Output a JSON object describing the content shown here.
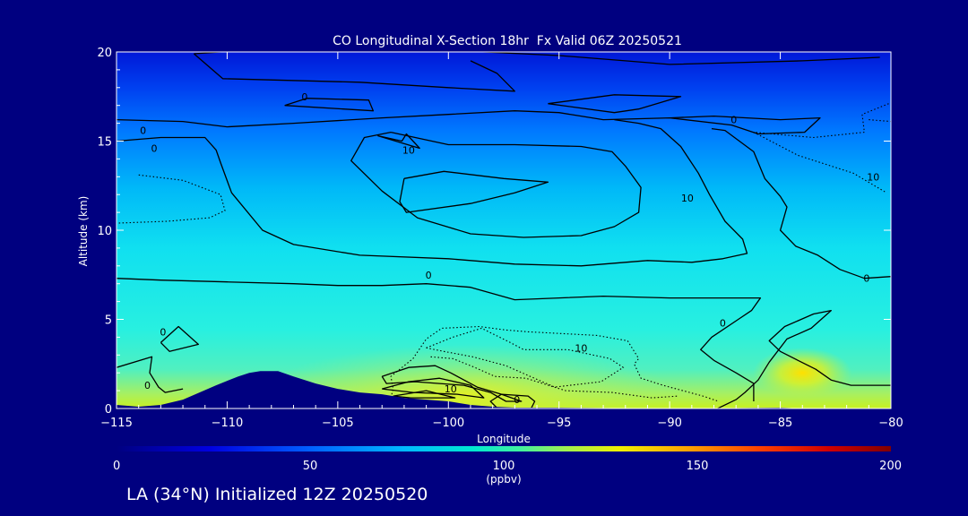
{
  "chart_data": {
    "type": "heatmap",
    "title": "CO Longitudinal X-Section 18hr  Fx Valid 06Z 20250521",
    "xlabel": "Longitude",
    "ylabel": "Altitude (km)",
    "xlim": [
      -115,
      -80
    ],
    "ylim": [
      0,
      20
    ],
    "x_ticks": [
      -115,
      -110,
      -105,
      -100,
      -95,
      -90,
      -85,
      -80
    ],
    "y_ticks": [
      0,
      5,
      10,
      15,
      20
    ],
    "x_tick_labels": [
      "−115",
      "−110",
      "−105",
      "−100",
      "−95",
      "−90",
      "−85",
      "−80"
    ],
    "y_tick_labels": [
      "0",
      "5",
      "10",
      "15",
      "20"
    ],
    "colorbar": {
      "min": 0,
      "max": 200,
      "units": "(ppbv)",
      "ticks": [
        0,
        50,
        100,
        150,
        200
      ],
      "tick_labels": [
        "0",
        "50",
        "100",
        "150",
        "200"
      ],
      "colors": [
        "#000080",
        "#0000e0",
        "#0060ff",
        "#00b8ff",
        "#00e8d0",
        "#40f0a0",
        "#a0f050",
        "#f0f000",
        "#ffa000",
        "#ff4000",
        "#d00000",
        "#800000"
      ]
    },
    "field_ppbv_by_altitude": {
      "altitudes_km": [
        0,
        2,
        5,
        10,
        15,
        20
      ],
      "values": [
        100,
        95,
        85,
        80,
        65,
        38
      ]
    },
    "enhancement": {
      "lon": -84,
      "alt_km": 2,
      "value": 118
    },
    "contour_levels_shown": [
      -10,
      0,
      10
    ],
    "contour_labels": [
      {
        "text": "0",
        "lon": -113.8,
        "alt": 15.6
      },
      {
        "text": "0",
        "lon": -113.3,
        "alt": 14.6
      },
      {
        "text": "0",
        "lon": -106.5,
        "alt": 17.5
      },
      {
        "text": "10",
        "lon": -101.8,
        "alt": 14.5
      },
      {
        "text": "10",
        "lon": -89.2,
        "alt": 11.8
      },
      {
        "text": "0",
        "lon": -87.1,
        "alt": 16.2
      },
      {
        "text": "10",
        "lon": -80.8,
        "alt": 13.0
      },
      {
        "text": "0",
        "lon": -100.9,
        "alt": 7.5
      },
      {
        "text": "0",
        "lon": -81.1,
        "alt": 7.3
      },
      {
        "text": "0",
        "lon": -87.6,
        "alt": 4.8
      },
      {
        "text": "10",
        "lon": -94.0,
        "alt": 3.4
      },
      {
        "text": "0",
        "lon": -112.9,
        "alt": 4.3
      },
      {
        "text": "0",
        "lon": -113.6,
        "alt": 1.3
      },
      {
        "text": "10",
        "lon": -99.9,
        "alt": 1.1
      },
      {
        "text": "0",
        "lon": -96.9,
        "alt": 0.5
      }
    ],
    "solid_contours": [
      [
        [
          -111.5,
          19.9
        ],
        [
          -108,
          20.2
        ],
        [
          -105,
          20.2
        ],
        [
          -100,
          20.1
        ],
        [
          -95,
          19.8
        ],
        [
          -92,
          19.5
        ],
        [
          -90,
          19.3
        ],
        [
          -84,
          19.5
        ],
        [
          -80.5,
          19.7
        ]
      ],
      [
        [
          -111.5,
          19.9
        ],
        [
          -110.2,
          18.5
        ],
        [
          -104,
          18.3
        ],
        [
          -100,
          18.0
        ],
        [
          -97,
          17.8
        ],
        [
          -97.8,
          18.8
        ],
        [
          -99,
          19.5
        ]
      ],
      [
        [
          -107.4,
          17.0
        ],
        [
          -103.4,
          16.7
        ],
        [
          -103.6,
          17.3
        ],
        [
          -106.4,
          17.4
        ],
        [
          -107.4,
          17.0
        ]
      ],
      [
        [
          -95.5,
          17.1
        ],
        [
          -92.5,
          17.6
        ],
        [
          -89.5,
          17.5
        ],
        [
          -91.4,
          16.8
        ],
        [
          -92.5,
          16.6
        ],
        [
          -95.5,
          17.1
        ]
      ],
      [
        [
          -115,
          16.2
        ],
        [
          -112,
          16.1
        ],
        [
          -110,
          15.8
        ],
        [
          -107,
          16.0
        ],
        [
          -103,
          16.3
        ],
        [
          -100,
          16.5
        ],
        [
          -97,
          16.7
        ],
        [
          -95,
          16.6
        ],
        [
          -93,
          16.2
        ],
        [
          -90,
          16.3
        ],
        [
          -88,
          16.4
        ],
        [
          -85,
          16.2
        ],
        [
          -83.2,
          16.3
        ],
        [
          -83.9,
          15.5
        ],
        [
          -86,
          15.4
        ],
        [
          -87.2,
          15.9
        ],
        [
          -90,
          16.3
        ]
      ],
      [
        [
          -115,
          15.0
        ],
        [
          -113,
          15.2
        ],
        [
          -111,
          15.2
        ],
        [
          -110.5,
          14.5
        ],
        [
          -110.3,
          13.8
        ],
        [
          -109.8,
          12.1
        ],
        [
          -108.4,
          10.0
        ],
        [
          -107.0,
          9.2
        ],
        [
          -104,
          8.6
        ],
        [
          -100,
          8.4
        ],
        [
          -97,
          8.1
        ],
        [
          -94,
          8.0
        ],
        [
          -91,
          8.3
        ],
        [
          -89,
          8.2
        ],
        [
          -87.6,
          8.4
        ],
        [
          -86.5,
          8.7
        ],
        [
          -86.7,
          9.5
        ],
        [
          -87.5,
          10.5
        ],
        [
          -88.2,
          12.0
        ],
        [
          -88.7,
          13.2
        ],
        [
          -89.5,
          14.7
        ],
        [
          -90.4,
          15.7
        ],
        [
          -91.4,
          16.0
        ],
        [
          -92.5,
          16.2
        ]
      ],
      [
        [
          -102.6,
          15.5
        ],
        [
          -103.8,
          15.2
        ],
        [
          -104.4,
          13.9
        ],
        [
          -103.0,
          12.2
        ],
        [
          -101.4,
          10.7
        ],
        [
          -99.0,
          9.8
        ],
        [
          -96.6,
          9.6
        ],
        [
          -94,
          9.7
        ],
        [
          -92.5,
          10.2
        ],
        [
          -91.4,
          11.0
        ],
        [
          -91.3,
          12.4
        ],
        [
          -92.0,
          13.6
        ],
        [
          -92.6,
          14.4
        ],
        [
          -94.0,
          14.7
        ],
        [
          -97,
          14.8
        ],
        [
          -100,
          14.8
        ],
        [
          -102.6,
          15.5
        ]
      ],
      [
        [
          -102.0,
          12.9
        ],
        [
          -100.2,
          13.3
        ],
        [
          -97.5,
          12.9
        ],
        [
          -95.5,
          12.7
        ],
        [
          -97.0,
          12.1
        ],
        [
          -99.0,
          11.5
        ],
        [
          -101.9,
          11.0
        ],
        [
          -102.2,
          11.6
        ],
        [
          -102.0,
          12.9
        ]
      ],
      [
        [
          -103.2,
          15.3
        ],
        [
          -102.1,
          15.0
        ],
        [
          -101.9,
          15.4
        ],
        [
          -101.3,
          14.6
        ],
        [
          -103.2,
          15.3
        ]
      ],
      [
        [
          -115,
          2.3
        ],
        [
          -113.4,
          2.9
        ],
        [
          -113.5,
          2.0
        ],
        [
          -113.1,
          1.2
        ],
        [
          -112.8,
          0.9
        ],
        [
          -112,
          1.1
        ]
      ],
      [
        [
          -113.0,
          3.7
        ],
        [
          -112.2,
          4.6
        ],
        [
          -111.3,
          3.6
        ],
        [
          -112.6,
          3.2
        ],
        [
          -113.0,
          3.7
        ]
      ],
      [
        [
          -80,
          7.4
        ],
        [
          -81.2,
          7.3
        ],
        [
          -82.3,
          7.8
        ],
        [
          -83.3,
          8.6
        ],
        [
          -84.3,
          9.1
        ],
        [
          -85.0,
          10.0
        ],
        [
          -84.7,
          11.3
        ],
        [
          -85.0,
          11.9
        ],
        [
          -85.7,
          12.9
        ],
        [
          -86.2,
          14.4
        ],
        [
          -87.5,
          15.6
        ],
        [
          -88.1,
          15.7
        ]
      ],
      [
        [
          -80,
          1.3
        ],
        [
          -81.8,
          1.3
        ],
        [
          -82.7,
          1.6
        ],
        [
          -83.4,
          2.2
        ],
        [
          -84.2,
          2.7
        ],
        [
          -85,
          3.2
        ],
        [
          -85.5,
          3.8
        ],
        [
          -84.8,
          4.6
        ],
        [
          -83.5,
          5.3
        ],
        [
          -82.7,
          5.5
        ],
        [
          -83.6,
          4.5
        ],
        [
          -84.7,
          3.9
        ],
        [
          -85.5,
          2.6
        ],
        [
          -86.0,
          1.6
        ],
        [
          -86.6,
          0.9
        ],
        [
          -87.0,
          0.5
        ],
        [
          -88,
          -0.1
        ]
      ],
      [
        [
          -86.2,
          0.4
        ],
        [
          -86.2,
          1.4
        ],
        [
          -87,
          2.0
        ],
        [
          -88.0,
          2.7
        ],
        [
          -88.6,
          3.3
        ],
        [
          -88.1,
          4.0
        ],
        [
          -86.9,
          5.0
        ],
        [
          -86.3,
          5.5
        ],
        [
          -85.9,
          6.2
        ],
        [
          -90,
          6.2
        ],
        [
          -93,
          6.3
        ],
        [
          -95,
          6.2
        ],
        [
          -97,
          6.1
        ],
        [
          -99,
          6.8
        ],
        [
          -101,
          7.0
        ],
        [
          -103,
          6.9
        ],
        [
          -105,
          6.9
        ],
        [
          -107,
          7.0
        ],
        [
          -110,
          7.1
        ],
        [
          -113,
          7.2
        ],
        [
          -115,
          7.3
        ]
      ],
      [
        [
          -103.0,
          1.8
        ],
        [
          -101.8,
          2.3
        ],
        [
          -100.6,
          2.4
        ],
        [
          -99.9,
          2.0
        ],
        [
          -98.7,
          1.2
        ],
        [
          -97.6,
          0.8
        ],
        [
          -96.7,
          0.4
        ],
        [
          -97.4,
          0.4
        ],
        [
          -98.1,
          0.9
        ],
        [
          -99.3,
          1.3
        ],
        [
          -101.5,
          1.5
        ],
        [
          -102.8,
          1.4
        ],
        [
          -103.0,
          1.8
        ]
      ],
      [
        [
          -103.0,
          1.1
        ],
        [
          -101.8,
          1.5
        ],
        [
          -100.4,
          1.7
        ],
        [
          -99.0,
          1.3
        ],
        [
          -98.4,
          0.6
        ],
        [
          -99.6,
          0.8
        ],
        [
          -101.6,
          0.9
        ],
        [
          -103.0,
          1.1
        ]
      ],
      [
        [
          -102.5,
          0.7
        ],
        [
          -101.0,
          1.0
        ],
        [
          -99.7,
          0.6
        ],
        [
          -101.7,
          0.6
        ],
        [
          -102.5,
          0.7
        ]
      ],
      [
        [
          -97.7,
          -0.1
        ],
        [
          -98.1,
          0.4
        ],
        [
          -97.6,
          0.8
        ],
        [
          -96.4,
          0.7
        ],
        [
          -96.1,
          0.4
        ],
        [
          -96.3,
          -0.1
        ]
      ]
    ],
    "dotted_contours": [
      [
        [
          -80.1,
          17.1
        ],
        [
          -81.3,
          16.5
        ],
        [
          -81.2,
          15.5
        ],
        [
          -83.5,
          15.2
        ],
        [
          -86.2,
          15.5
        ],
        [
          -84.2,
          14.2
        ],
        [
          -81.7,
          13.2
        ],
        [
          -80.2,
          12.1
        ]
      ],
      [
        [
          -81.0,
          16.2
        ],
        [
          -80.0,
          16.1
        ]
      ],
      [
        [
          -114.0,
          13.1
        ],
        [
          -112.0,
          12.8
        ],
        [
          -110.3,
          12.0
        ],
        [
          -110.1,
          11.1
        ],
        [
          -110.8,
          10.7
        ],
        [
          -112.7,
          10.5
        ],
        [
          -114.9,
          10.4
        ]
      ],
      [
        [
          -102.6,
          0.6
        ],
        [
          -102.5,
          1.1
        ],
        [
          -102.6,
          1.8
        ],
        [
          -101.6,
          2.8
        ],
        [
          -101.0,
          3.9
        ],
        [
          -100.3,
          4.5
        ],
        [
          -98.6,
          4.6
        ],
        [
          -97.4,
          4.4
        ],
        [
          -96.4,
          4.3
        ],
        [
          -93.3,
          4.1
        ],
        [
          -91.9,
          3.8
        ],
        [
          -91.4,
          2.8
        ],
        [
          -91.6,
          2.5
        ],
        [
          -91.3,
          1.7
        ],
        [
          -90.3,
          1.3
        ],
        [
          -89.4,
          1.0
        ],
        [
          -88.5,
          0.7
        ],
        [
          -87.8,
          0.4
        ]
      ],
      [
        [
          -101.0,
          3.4
        ],
        [
          -99.8,
          4.0
        ],
        [
          -98.5,
          4.5
        ],
        [
          -97.2,
          3.7
        ],
        [
          -96.6,
          3.3
        ],
        [
          -94.6,
          3.3
        ],
        [
          -92.7,
          2.8
        ],
        [
          -92.1,
          2.3
        ],
        [
          -93.1,
          1.5
        ],
        [
          -95.2,
          1.2
        ],
        [
          -96.3,
          1.8
        ],
        [
          -97.4,
          2.4
        ],
        [
          -98.9,
          2.9
        ],
        [
          -100.2,
          3.2
        ],
        [
          -101.0,
          3.4
        ]
      ],
      [
        [
          -100.8,
          2.9
        ],
        [
          -99.8,
          2.8
        ],
        [
          -98.8,
          2.3
        ],
        [
          -97.9,
          1.8
        ],
        [
          -96.5,
          1.7
        ],
        [
          -94.7,
          1.0
        ],
        [
          -92.6,
          0.9
        ],
        [
          -90.8,
          0.6
        ],
        [
          -89.6,
          0.7
        ]
      ]
    ],
    "terrain": [
      [
        -115,
        0
      ],
      [
        -115,
        0.2
      ],
      [
        -114,
        0.1
      ],
      [
        -113,
        0.2
      ],
      [
        -112,
        0.5
      ],
      [
        -110.5,
        1.3
      ],
      [
        -109.5,
        1.8
      ],
      [
        -109,
        2.0
      ],
      [
        -108.5,
        2.1
      ],
      [
        -107.7,
        2.1
      ],
      [
        -107,
        1.8
      ],
      [
        -106,
        1.4
      ],
      [
        -105,
        1.1
      ],
      [
        -104,
        0.9
      ],
      [
        -103,
        0.8
      ],
      [
        -102,
        0.6
      ],
      [
        -101,
        0.5
      ],
      [
        -100,
        0.4
      ],
      [
        -99.5,
        0.3
      ],
      [
        -99,
        0.2
      ],
      [
        -98,
        0.1
      ],
      [
        -97,
        0.05
      ],
      [
        -96,
        0.05
      ],
      [
        -95,
        0.05
      ],
      [
        -90,
        0
      ],
      [
        -85,
        0.05
      ],
      [
        -84,
        0
      ],
      [
        -80,
        0
      ],
      [
        -80,
        -0.1
      ],
      [
        -115,
        -0.1
      ]
    ]
  },
  "footer_text": "LA (34°N) Initialized 12Z 20250520"
}
